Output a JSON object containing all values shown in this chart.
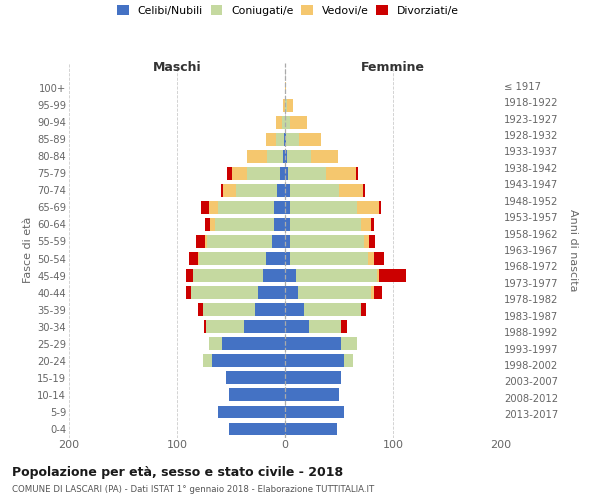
{
  "age_groups": [
    "0-4",
    "5-9",
    "10-14",
    "15-19",
    "20-24",
    "25-29",
    "30-34",
    "35-39",
    "40-44",
    "45-49",
    "50-54",
    "55-59",
    "60-64",
    "65-69",
    "70-74",
    "75-79",
    "80-84",
    "85-89",
    "90-94",
    "95-99",
    "100+"
  ],
  "birth_years": [
    "2013-2017",
    "2008-2012",
    "2003-2007",
    "1998-2002",
    "1993-1997",
    "1988-1992",
    "1983-1987",
    "1978-1982",
    "1973-1977",
    "1968-1972",
    "1963-1967",
    "1958-1962",
    "1953-1957",
    "1948-1952",
    "1943-1947",
    "1938-1942",
    "1933-1937",
    "1928-1932",
    "1923-1927",
    "1918-1922",
    "≤ 1917"
  ],
  "colors": {
    "celibe": "#4472C4",
    "coniugato": "#c5d9a0",
    "vedovo": "#f5c76e",
    "divorziato": "#cc0000"
  },
  "maschi": {
    "celibe": [
      52,
      62,
      52,
      55,
      68,
      58,
      38,
      28,
      25,
      20,
      18,
      12,
      10,
      10,
      7,
      5,
      2,
      1,
      0,
      0,
      0
    ],
    "coniugato": [
      0,
      0,
      0,
      0,
      8,
      12,
      35,
      48,
      62,
      65,
      62,
      60,
      55,
      52,
      38,
      30,
      15,
      7,
      3,
      0,
      0
    ],
    "vedovo": [
      0,
      0,
      0,
      0,
      0,
      0,
      0,
      0,
      0,
      0,
      1,
      2,
      4,
      8,
      12,
      14,
      18,
      10,
      5,
      2,
      0
    ],
    "divorziato": [
      0,
      0,
      0,
      0,
      0,
      0,
      2,
      5,
      5,
      7,
      8,
      8,
      5,
      8,
      2,
      5,
      0,
      0,
      0,
      0,
      0
    ]
  },
  "femmine": {
    "nubile": [
      48,
      55,
      50,
      52,
      55,
      52,
      22,
      18,
      12,
      10,
      5,
      5,
      5,
      5,
      5,
      3,
      2,
      1,
      0,
      0,
      0
    ],
    "coniugata": [
      0,
      0,
      0,
      0,
      8,
      15,
      30,
      52,
      68,
      75,
      72,
      68,
      65,
      62,
      45,
      35,
      22,
      12,
      5,
      2,
      0
    ],
    "vedova": [
      0,
      0,
      0,
      0,
      0,
      0,
      0,
      0,
      2,
      2,
      5,
      5,
      10,
      20,
      22,
      28,
      25,
      20,
      15,
      5,
      1
    ],
    "divorziata": [
      0,
      0,
      0,
      0,
      0,
      0,
      5,
      5,
      8,
      25,
      10,
      5,
      2,
      2,
      2,
      2,
      0,
      0,
      0,
      0,
      0
    ]
  },
  "title": "Popolazione per età, sesso e stato civile - 2018",
  "subtitle": "COMUNE DI LASCARI (PA) - Dati ISTAT 1° gennaio 2018 - Elaborazione TUTTITALIA.IT",
  "xlabel_left": "Maschi",
  "xlabel_right": "Femmine",
  "ylabel_left": "Fasce di età",
  "ylabel_right": "Anni di nascita",
  "xlim": 200,
  "legend_labels": [
    "Celibi/Nubili",
    "Coniugati/e",
    "Vedovi/e",
    "Divorziati/e"
  ],
  "background_color": "#ffffff",
  "bar_height": 0.75
}
